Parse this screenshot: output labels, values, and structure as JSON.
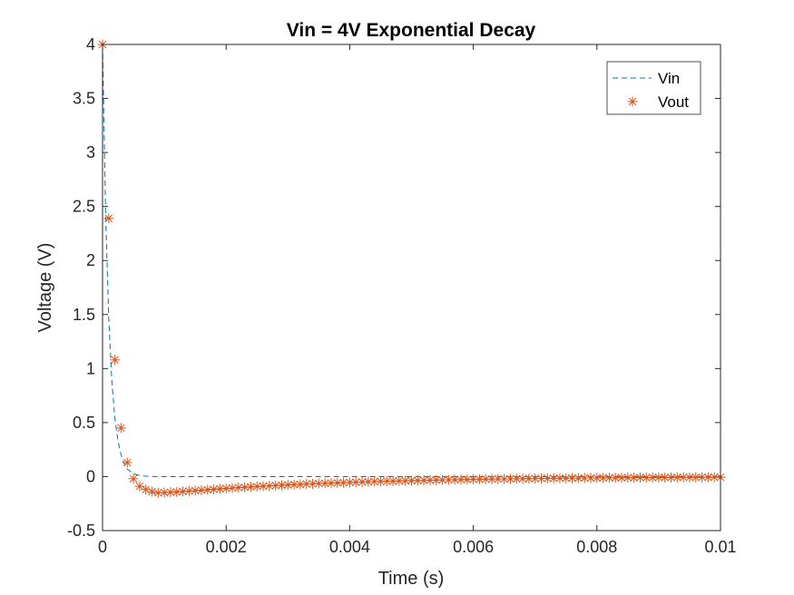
{
  "chart_data": {
    "type": "line",
    "title": "Vin = 4V Exponential Decay",
    "xlabel": "Time (s)",
    "ylabel": "Voltage (V)",
    "xlim": [
      0,
      0.01
    ],
    "ylim": [
      -0.5,
      4
    ],
    "xticks": [
      0,
      0.002,
      0.004,
      0.006,
      0.008,
      0.01
    ],
    "xtick_labels": [
      "0",
      "0.002",
      "0.004",
      "0.006",
      "0.008",
      "0.01"
    ],
    "yticks": [
      -0.5,
      0,
      0.5,
      1,
      1.5,
      2,
      2.5,
      3,
      3.5,
      4
    ],
    "ytick_labels": [
      "-0.5",
      "0",
      "0.5",
      "1",
      "1.5",
      "2",
      "2.5",
      "3",
      "3.5",
      "4"
    ],
    "grid": false,
    "legend_position": "top-right",
    "series": [
      {
        "name": "Vin",
        "style": "dashed-line",
        "color": "#0072BD",
        "function": "exponential decay: V = 4 * exp(-t / 0.0001)",
        "x": [
          0,
          5e-05,
          0.0001,
          0.00015,
          0.0002,
          0.00025,
          0.0003,
          0.00035,
          0.0004,
          0.0005,
          0.0006,
          0.0007,
          0.0008,
          0.001,
          0.002,
          0.004,
          0.006,
          0.008,
          0.01
        ],
        "values": [
          4,
          2.43,
          1.47,
          0.89,
          0.54,
          0.33,
          0.2,
          0.12,
          0.07,
          0.027,
          0.01,
          0.004,
          0.001,
          0,
          0,
          0,
          0,
          0,
          0
        ]
      },
      {
        "name": "Vout",
        "style": "asterisk-markers",
        "color": "#D95319",
        "x_start": 0,
        "x_step": 0.0001,
        "values": [
          4,
          2.39,
          1.08,
          0.45,
          0.13,
          -0.02,
          -0.09,
          -0.12,
          -0.14,
          -0.15,
          -0.148,
          -0.145,
          -0.142,
          -0.138,
          -0.134,
          -0.13,
          -0.126,
          -0.122,
          -0.118,
          -0.114,
          -0.11,
          -0.106,
          -0.102,
          -0.099,
          -0.095,
          -0.092,
          -0.089,
          -0.086,
          -0.083,
          -0.08,
          -0.077,
          -0.074,
          -0.072,
          -0.069,
          -0.067,
          -0.064,
          -0.062,
          -0.06,
          -0.058,
          -0.056,
          -0.054,
          -0.052,
          -0.05,
          -0.048,
          -0.046,
          -0.045,
          -0.043,
          -0.042,
          -0.04,
          -0.039,
          -0.037,
          -0.036,
          -0.035,
          -0.033,
          -0.032,
          -0.031,
          -0.03,
          -0.029,
          -0.028,
          -0.027,
          -0.026,
          -0.025,
          -0.024,
          -0.023,
          -0.022,
          -0.022,
          -0.021,
          -0.02,
          -0.019,
          -0.019,
          -0.018,
          -0.017,
          -0.017,
          -0.016,
          -0.015,
          -0.015,
          -0.014,
          -0.014,
          -0.013,
          -0.013,
          -0.012,
          -0.012,
          -0.011,
          -0.011,
          -0.011,
          -0.01,
          -0.01,
          -0.009,
          -0.009,
          -0.009,
          -0.008,
          -0.008,
          -0.008,
          -0.007,
          -0.007,
          -0.007,
          -0.007,
          -0.006,
          -0.006,
          -0.006,
          -0.006
        ]
      }
    ]
  }
}
